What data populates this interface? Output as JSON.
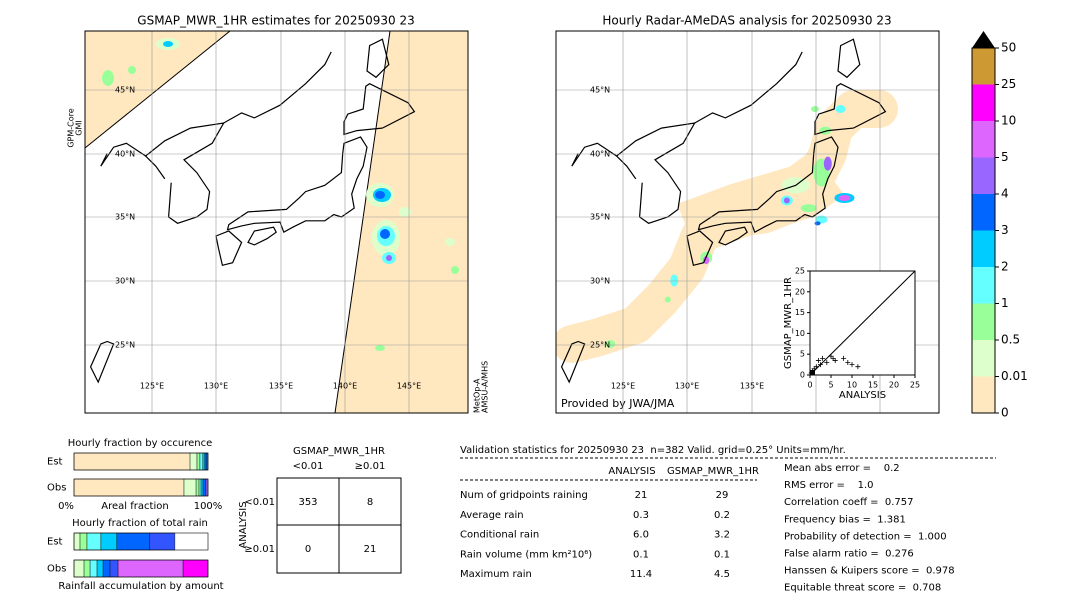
{
  "chart_data": [
    {
      "type": "map",
      "title": "GSMAP_MWR_1HR estimates for 20250930 23",
      "lat_labels": [
        "45°N",
        "40°N",
        "35°N",
        "30°N",
        "25°N"
      ],
      "lon_labels": [
        "125°E",
        "130°E",
        "135°E",
        "140°E",
        "145°E"
      ],
      "left_labels": [
        "GPM-Core",
        "GMI"
      ],
      "right_labels": [
        "MetOp-A",
        "AMSU-A/MHS"
      ]
    },
    {
      "type": "map",
      "title": "Hourly Radar-AMeDAS analysis for 20250930 23",
      "lat_labels": [
        "45°N",
        "40°N",
        "35°N",
        "30°N",
        "25°N"
      ],
      "lon_labels": [
        "125°E",
        "130°E",
        "135°E"
      ],
      "credit": "Provided by JWA/JMA"
    },
    {
      "type": "colorbar",
      "ticks": [
        0,
        0.01,
        0.5,
        1,
        2,
        3,
        4,
        5,
        10,
        25,
        50
      ],
      "colors": [
        "#ffe8c0",
        "#ddffcc",
        "#99ff99",
        "#66ffff",
        "#00ccff",
        "#0066ff",
        "#9966ff",
        "#dd66ff",
        "#ff00ff",
        "#cc9933"
      ],
      "extend_color": "#000000"
    },
    {
      "type": "scatter",
      "xlabel": "ANALYSIS",
      "ylabel": "GSMAP_MWR_1HR",
      "xlim": [
        0,
        25
      ],
      "ylim": [
        0,
        25
      ],
      "xticks": [
        0,
        5,
        10,
        15,
        20,
        25
      ],
      "yticks": [
        0,
        5,
        10,
        15,
        20,
        25
      ],
      "x": [
        0.3,
        0.6,
        1,
        1.5,
        2,
        2.5,
        3,
        4,
        5,
        5.5,
        6,
        8,
        9,
        10,
        11.4
      ],
      "y": [
        0.5,
        1,
        1.5,
        2,
        3.5,
        2.5,
        4,
        3,
        4.5,
        4,
        3.5,
        4,
        3,
        2.5,
        2
      ]
    },
    {
      "type": "stacked_bar",
      "title": "Hourly fraction by occurence",
      "xlabel": "Areal fraction",
      "categories": [
        "Est",
        "Obs"
      ],
      "xlim": [
        0,
        100
      ],
      "xticks": [
        {
          "value": 0,
          "label": "0%"
        },
        {
          "value": 100,
          "label": "100%"
        }
      ],
      "series": [
        {
          "color": "#ffe8c0",
          "values": [
            86.6,
            82.1
          ]
        },
        {
          "color": "#ddffcc",
          "values": [
            5.2,
            9.0
          ]
        },
        {
          "color": "#99ff99",
          "values": [
            2.2,
            2.2
          ]
        },
        {
          "color": "#66ffff",
          "values": [
            2.2,
            1.5
          ]
        },
        {
          "color": "#00ccff",
          "values": [
            1.5,
            1.5
          ]
        },
        {
          "color": "#0066ff",
          "values": [
            1.5,
            2.2
          ]
        },
        {
          "color": "#9966ff",
          "values": [
            0.8,
            1.5
          ]
        }
      ]
    },
    {
      "type": "stacked_bar",
      "title": "Hourly fraction of total rain",
      "xlabel": "Rainfall accumulation by amount",
      "categories": [
        "Est",
        "Obs"
      ],
      "xlim": [
        0,
        100
      ],
      "series": [
        {
          "color": "#ddffcc",
          "values": [
            4.5,
            7.5
          ]
        },
        {
          "color": "#99ff99",
          "values": [
            5.2,
            4.5
          ]
        },
        {
          "color": "#66ffff",
          "values": [
            10.4,
            5.2
          ]
        },
        {
          "color": "#00ccff",
          "values": [
            11.9,
            4.5
          ]
        },
        {
          "color": "#0066ff",
          "values": [
            24.6,
            5.2
          ]
        },
        {
          "color": "#3355ff",
          "values": [
            18.7,
            6.0
          ]
        },
        {
          "color": "#dd66ff",
          "values": [
            0,
            48.5
          ]
        },
        {
          "color": "#ff00ff",
          "values": [
            0,
            18.6
          ]
        }
      ]
    }
  ],
  "contingency": {
    "title": "GSMAP_MWR_1HR",
    "col_labels": [
      "<0.01",
      "≥0.01"
    ],
    "row_title": "ANALYSIS",
    "row_labels": [
      "<0.01",
      "≥0.01"
    ],
    "cells": [
      [
        353,
        8
      ],
      [
        0,
        21
      ]
    ]
  },
  "validation": {
    "header": "Validation statistics for 20250930 23  n=382 Valid. grid=0.25° Units=mm/hr.",
    "columns": [
      "ANALYSIS",
      "GSMAP_MWR_1HR"
    ],
    "rows": [
      [
        "Num of gridpoints raining",
        "21",
        "29"
      ],
      [
        "Average rain",
        "0.3",
        "0.2"
      ],
      [
        "Conditional rain",
        "6.0",
        "3.2"
      ],
      [
        "Rain volume (mm km²10⁶)",
        "0.1",
        "0.1"
      ],
      [
        "Maximum rain",
        "11.4",
        "4.5"
      ]
    ],
    "scores": [
      "Mean abs error =    0.2",
      "RMS error =    1.0",
      "Correlation coeff =  0.757",
      "Frequency bias =  1.381",
      "Probability of detection =  1.000",
      "False alarm ratio =  0.276",
      "Hanssen & Kuipers score =  0.978",
      "Equitable threat score =  0.708"
    ]
  }
}
